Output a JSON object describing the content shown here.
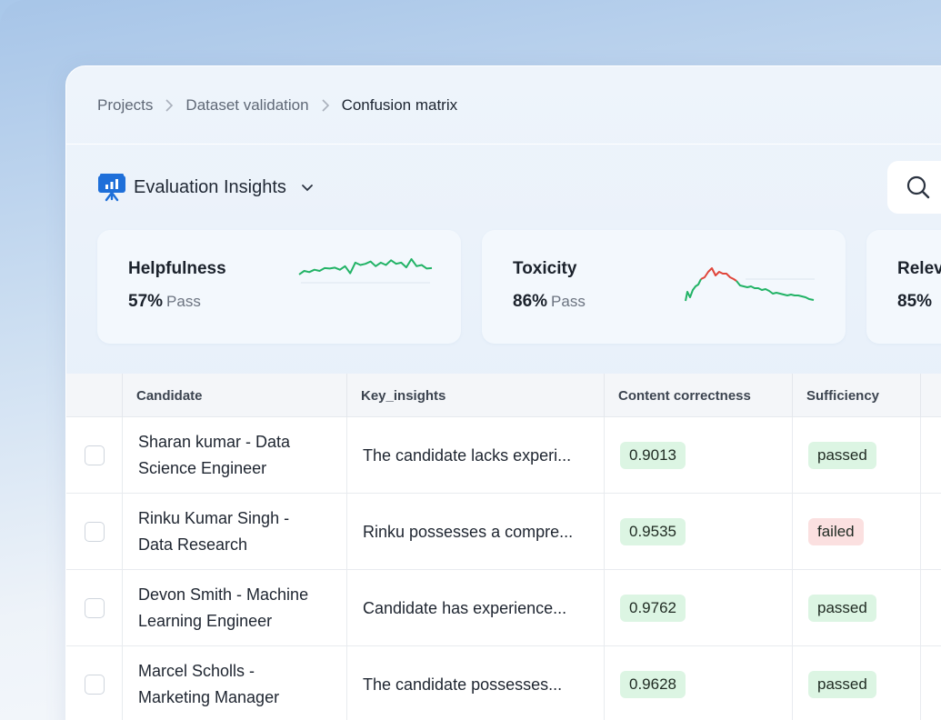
{
  "breadcrumb": {
    "items": [
      "Projects",
      "Dataset validation",
      "Confusion matrix"
    ]
  },
  "insights": {
    "title": "Evaluation Insights",
    "icon": "presentation-chart-icon",
    "dropdown_icon": "chevron-down-icon",
    "search_icon": "search-icon"
  },
  "cards": [
    {
      "name": "Helpfulness",
      "percent": "57%",
      "status": "Pass",
      "sparkline": [
        0.35,
        0.5,
        0.45,
        0.55,
        0.5,
        0.62,
        0.6,
        0.64,
        0.55,
        0.7,
        0.4,
        0.85,
        0.75,
        0.8,
        0.9,
        0.7,
        0.85,
        0.75,
        0.95,
        0.8,
        0.85,
        0.65,
        1.0,
        0.7,
        0.75,
        0.6,
        0.62
      ]
    },
    {
      "name": "Toxicity",
      "percent": "86%",
      "status": "Pass"
    },
    {
      "name": "Relev",
      "percent": "85%"
    }
  ],
  "colors": {
    "accent_blue": "#1e6fd9",
    "spark_green": "#22b366",
    "spark_red": "#e0453a",
    "pill_green": "#dcf5e3",
    "pill_red": "#fbe0e0"
  },
  "table": {
    "columns": [
      "Candidate",
      "Key_insights",
      "Content correctness",
      "Sufficiency"
    ],
    "rows": [
      {
        "candidate": "Sharan kumar - Data\nScience  Engineer",
        "insight": "The candidate lacks experi...",
        "correctness": "0.9013",
        "sufficiency": "passed"
      },
      {
        "candidate": "Rinku Kumar Singh -\nData Research",
        "insight": "Rinku possesses a compre...",
        "correctness": "0.9535",
        "sufficiency": "failed"
      },
      {
        "candidate": "Devon Smith - Machine\nLearning Engineer",
        "insight": "Candidate has experience...",
        "correctness": "0.9762",
        "sufficiency": "passed"
      },
      {
        "candidate": "Marcel Scholls -\nMarketing Manager",
        "insight": "The candidate possesses...",
        "correctness": "0.9628",
        "sufficiency": "passed"
      }
    ]
  }
}
